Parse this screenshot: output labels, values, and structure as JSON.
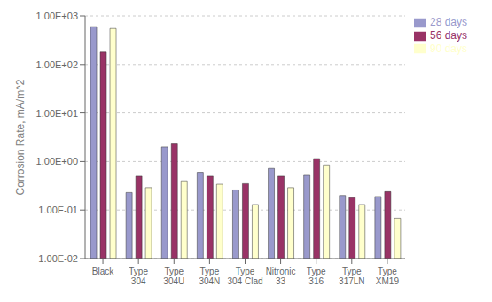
{
  "chart_data": {
    "type": "bar",
    "categories": [
      "Black",
      "Type\n304",
      "Type\n304U",
      "Type\n304N",
      "Type\n304 Clad",
      "Nitronic\n33",
      "Type\n316",
      "Type\n317LN",
      "Type\nXM19"
    ],
    "series": [
      {
        "name": "28 days",
        "color": "#9999CC",
        "values": [
          600,
          0.23,
          2.0,
          0.6,
          0.26,
          0.72,
          0.52,
          0.2,
          0.19
        ]
      },
      {
        "name": "56 days",
        "color": "#993366",
        "values": [
          180,
          0.5,
          2.3,
          0.5,
          0.35,
          0.5,
          1.15,
          0.18,
          0.24
        ]
      },
      {
        "name": "90 days",
        "color": "#FFFFCC",
        "values": [
          550,
          0.29,
          0.4,
          0.34,
          0.13,
          0.29,
          0.85,
          0.13,
          0.068
        ]
      }
    ],
    "ylabel": "Corrosion Rate, mA/m^2",
    "ylim": [
      0.01,
      1000
    ],
    "yticks": [
      {
        "value": 0.01,
        "label": "1.00E-02"
      },
      {
        "value": 0.1,
        "label": "1.00E-01"
      },
      {
        "value": 1,
        "label": "1.00E+00"
      },
      {
        "value": 10,
        "label": "1.00E+01"
      },
      {
        "value": 100,
        "label": "1.00E+02"
      },
      {
        "value": 1000,
        "label": "1.00E+03"
      }
    ],
    "log": "y",
    "grid": true,
    "legend": "upper right"
  }
}
